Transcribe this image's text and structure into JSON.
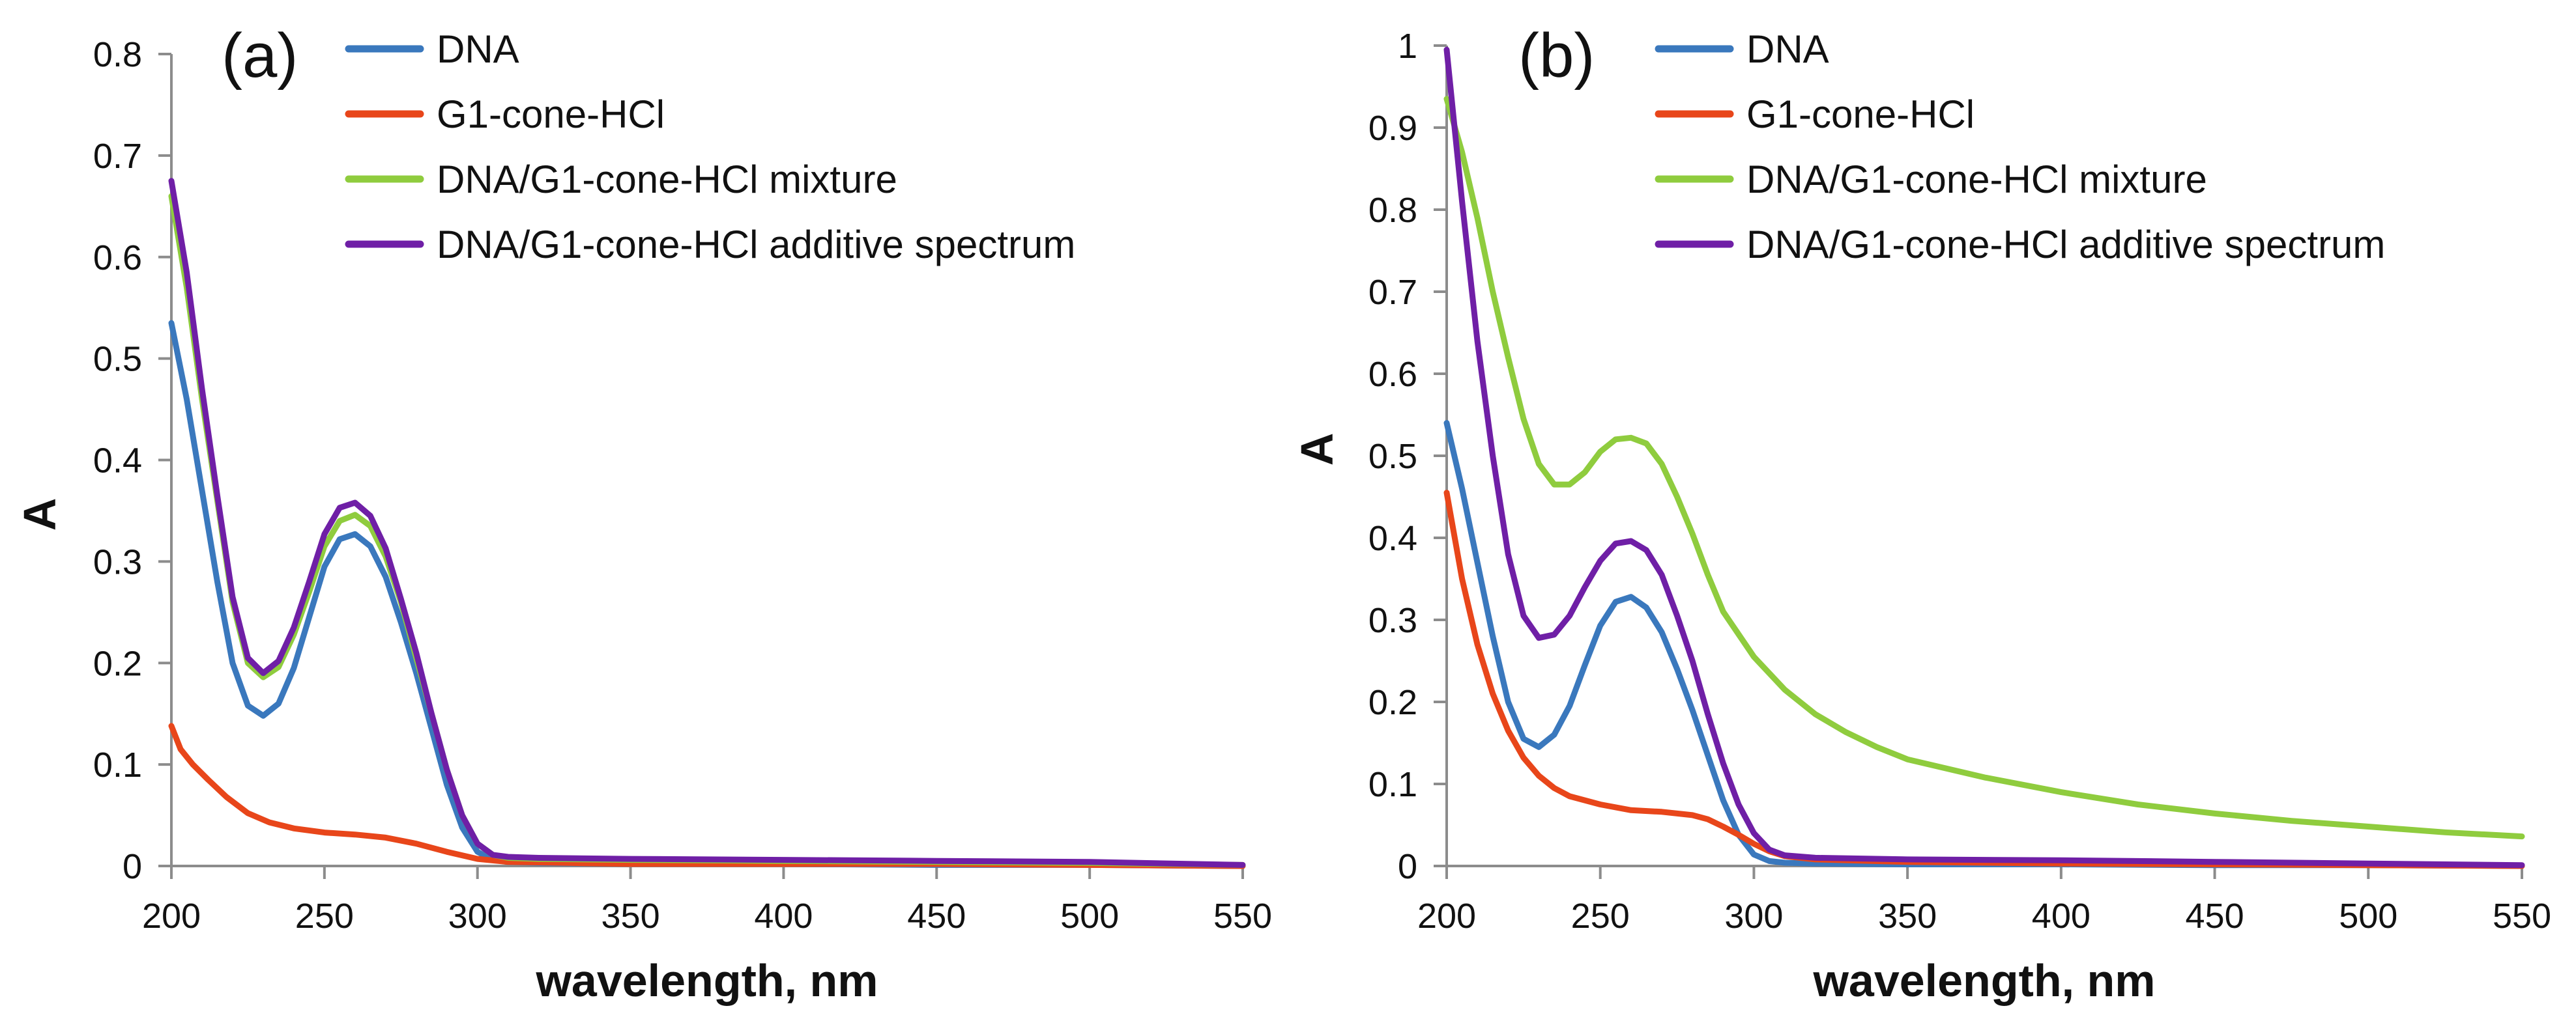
{
  "chart_data": [
    {
      "type": "line",
      "panel_label": "(a)",
      "xlabel": "wavelength, nm",
      "ylabel": "A",
      "xlim": [
        200,
        550
      ],
      "ylim": [
        0,
        0.8
      ],
      "x_ticks": [
        "200",
        "250",
        "300",
        "350",
        "400",
        "450",
        "500",
        "550"
      ],
      "y_ticks": [
        "0",
        "0.1",
        "0.2",
        "0.3",
        "0.4",
        "0.5",
        "0.6",
        "0.7",
        "0.8"
      ],
      "legend_position": "top-right",
      "series": [
        {
          "name": "DNA",
          "color": "#3a78bd",
          "points": [
            [
              200,
              0.535
            ],
            [
              205,
              0.46
            ],
            [
              210,
              0.37
            ],
            [
              215,
              0.28
            ],
            [
              220,
              0.2
            ],
            [
              225,
              0.158
            ],
            [
              230,
              0.148
            ],
            [
              235,
              0.16
            ],
            [
              240,
              0.195
            ],
            [
              245,
              0.245
            ],
            [
              250,
              0.295
            ],
            [
              255,
              0.322
            ],
            [
              260,
              0.327
            ],
            [
              265,
              0.315
            ],
            [
              270,
              0.285
            ],
            [
              275,
              0.24
            ],
            [
              280,
              0.19
            ],
            [
              285,
              0.135
            ],
            [
              290,
              0.08
            ],
            [
              295,
              0.038
            ],
            [
              300,
              0.014
            ],
            [
              305,
              0.006
            ],
            [
              310,
              0.004
            ],
            [
              320,
              0.003
            ],
            [
              350,
              0.002
            ],
            [
              400,
              0.002
            ],
            [
              450,
              0.001
            ],
            [
              500,
              0.001
            ],
            [
              550,
              0.0
            ]
          ]
        },
        {
          "name": "G1-cone-HCl",
          "color": "#e8461a",
          "points": [
            [
              200,
              0.138
            ],
            [
              203,
              0.115
            ],
            [
              207,
              0.1
            ],
            [
              212,
              0.085
            ],
            [
              218,
              0.068
            ],
            [
              225,
              0.052
            ],
            [
              232,
              0.043
            ],
            [
              240,
              0.037
            ],
            [
              250,
              0.033
            ],
            [
              260,
              0.031
            ],
            [
              270,
              0.028
            ],
            [
              280,
              0.022
            ],
            [
              290,
              0.014
            ],
            [
              300,
              0.007
            ],
            [
              310,
              0.004
            ],
            [
              330,
              0.003
            ],
            [
              350,
              0.002
            ],
            [
              400,
              0.002
            ],
            [
              450,
              0.002
            ],
            [
              500,
              0.001
            ],
            [
              550,
              0.0
            ]
          ]
        },
        {
          "name": "DNA/G1-cone-HCl mixture",
          "color": "#8fcc3e",
          "points": [
            [
              200,
              0.66
            ],
            [
              205,
              0.57
            ],
            [
              210,
              0.46
            ],
            [
              215,
              0.36
            ],
            [
              220,
              0.26
            ],
            [
              225,
              0.2
            ],
            [
              230,
              0.186
            ],
            [
              235,
              0.196
            ],
            [
              240,
              0.228
            ],
            [
              245,
              0.27
            ],
            [
              250,
              0.315
            ],
            [
              255,
              0.34
            ],
            [
              260,
              0.346
            ],
            [
              265,
              0.335
            ],
            [
              270,
              0.305
            ],
            [
              275,
              0.26
            ],
            [
              280,
              0.205
            ],
            [
              285,
              0.15
            ],
            [
              290,
              0.095
            ],
            [
              295,
              0.05
            ],
            [
              300,
              0.022
            ],
            [
              305,
              0.011
            ],
            [
              310,
              0.008
            ],
            [
              320,
              0.007
            ],
            [
              350,
              0.006
            ],
            [
              400,
              0.005
            ],
            [
              450,
              0.004
            ],
            [
              500,
              0.003
            ],
            [
              550,
              0.001
            ]
          ]
        },
        {
          "name": "DNA/G1-cone-HCl additive spectrum",
          "color": "#6f1fa6",
          "points": [
            [
              200,
              0.675
            ],
            [
              205,
              0.585
            ],
            [
              210,
              0.47
            ],
            [
              215,
              0.365
            ],
            [
              220,
              0.265
            ],
            [
              225,
              0.205
            ],
            [
              230,
              0.19
            ],
            [
              235,
              0.202
            ],
            [
              240,
              0.235
            ],
            [
              245,
              0.28
            ],
            [
              250,
              0.327
            ],
            [
              255,
              0.353
            ],
            [
              260,
              0.358
            ],
            [
              265,
              0.345
            ],
            [
              270,
              0.313
            ],
            [
              275,
              0.263
            ],
            [
              280,
              0.21
            ],
            [
              285,
              0.15
            ],
            [
              290,
              0.095
            ],
            [
              295,
              0.05
            ],
            [
              300,
              0.022
            ],
            [
              305,
              0.011
            ],
            [
              310,
              0.009
            ],
            [
              320,
              0.008
            ],
            [
              350,
              0.007
            ],
            [
              400,
              0.006
            ],
            [
              450,
              0.005
            ],
            [
              500,
              0.004
            ],
            [
              550,
              0.001
            ]
          ]
        }
      ]
    },
    {
      "type": "line",
      "panel_label": "(b)",
      "xlabel": "wavelength, nm",
      "ylabel": "A",
      "xlim": [
        200,
        550
      ],
      "ylim": [
        0,
        1
      ],
      "x_ticks": [
        "200",
        "250",
        "300",
        "350",
        "400",
        "450",
        "500",
        "550"
      ],
      "y_ticks": [
        "0",
        "0.1",
        "0.2",
        "0.3",
        "0.4",
        "0.5",
        "0.6",
        "0.7",
        "0.8",
        "0.9",
        "1"
      ],
      "legend_position": "top-right",
      "series": [
        {
          "name": "DNA",
          "color": "#3a78bd",
          "points": [
            [
              200,
              0.54
            ],
            [
              205,
              0.46
            ],
            [
              210,
              0.37
            ],
            [
              215,
              0.28
            ],
            [
              220,
              0.2
            ],
            [
              225,
              0.155
            ],
            [
              230,
              0.145
            ],
            [
              235,
              0.16
            ],
            [
              240,
              0.195
            ],
            [
              245,
              0.245
            ],
            [
              250,
              0.293
            ],
            [
              255,
              0.322
            ],
            [
              260,
              0.328
            ],
            [
              265,
              0.315
            ],
            [
              270,
              0.285
            ],
            [
              275,
              0.24
            ],
            [
              280,
              0.19
            ],
            [
              285,
              0.135
            ],
            [
              290,
              0.08
            ],
            [
              295,
              0.038
            ],
            [
              300,
              0.014
            ],
            [
              305,
              0.006
            ],
            [
              310,
              0.004
            ],
            [
              320,
              0.003
            ],
            [
              350,
              0.002
            ],
            [
              400,
              0.002
            ],
            [
              450,
              0.001
            ],
            [
              500,
              0.001
            ],
            [
              550,
              0.0
            ]
          ]
        },
        {
          "name": "G1-cone-HCl",
          "color": "#e8461a",
          "points": [
            [
              200,
              0.455
            ],
            [
              205,
              0.35
            ],
            [
              210,
              0.27
            ],
            [
              215,
              0.21
            ],
            [
              220,
              0.165
            ],
            [
              225,
              0.132
            ],
            [
              230,
              0.11
            ],
            [
              235,
              0.095
            ],
            [
              240,
              0.085
            ],
            [
              250,
              0.075
            ],
            [
              260,
              0.068
            ],
            [
              270,
              0.066
            ],
            [
              280,
              0.062
            ],
            [
              285,
              0.057
            ],
            [
              290,
              0.048
            ],
            [
              295,
              0.038
            ],
            [
              300,
              0.027
            ],
            [
              305,
              0.018
            ],
            [
              310,
              0.012
            ],
            [
              320,
              0.008
            ],
            [
              350,
              0.005
            ],
            [
              400,
              0.003
            ],
            [
              450,
              0.002
            ],
            [
              500,
              0.001
            ],
            [
              550,
              0.0
            ]
          ]
        },
        {
          "name": "DNA/G1-cone-HCl mixture",
          "color": "#8fcc3e",
          "points": [
            [
              200,
              0.935
            ],
            [
              205,
              0.87
            ],
            [
              210,
              0.79
            ],
            [
              215,
              0.7
            ],
            [
              220,
              0.62
            ],
            [
              225,
              0.545
            ],
            [
              230,
              0.49
            ],
            [
              235,
              0.465
            ],
            [
              240,
              0.465
            ],
            [
              245,
              0.48
            ],
            [
              250,
              0.505
            ],
            [
              255,
              0.52
            ],
            [
              260,
              0.522
            ],
            [
              265,
              0.515
            ],
            [
              270,
              0.49
            ],
            [
              275,
              0.45
            ],
            [
              280,
              0.405
            ],
            [
              285,
              0.355
            ],
            [
              290,
              0.31
            ],
            [
              300,
              0.255
            ],
            [
              310,
              0.215
            ],
            [
              320,
              0.185
            ],
            [
              330,
              0.163
            ],
            [
              340,
              0.145
            ],
            [
              350,
              0.13
            ],
            [
              375,
              0.108
            ],
            [
              400,
              0.09
            ],
            [
              425,
              0.075
            ],
            [
              450,
              0.064
            ],
            [
              475,
              0.055
            ],
            [
              500,
              0.048
            ],
            [
              525,
              0.041
            ],
            [
              550,
              0.036
            ]
          ]
        },
        {
          "name": "DNA/G1-cone-HCl additive spectrum",
          "color": "#6f1fa6",
          "points": [
            [
              200,
              0.995
            ],
            [
              205,
              0.81
            ],
            [
              210,
              0.64
            ],
            [
              215,
              0.5
            ],
            [
              220,
              0.38
            ],
            [
              225,
              0.305
            ],
            [
              230,
              0.278
            ],
            [
              235,
              0.282
            ],
            [
              240,
              0.305
            ],
            [
              245,
              0.34
            ],
            [
              250,
              0.372
            ],
            [
              255,
              0.393
            ],
            [
              260,
              0.396
            ],
            [
              265,
              0.385
            ],
            [
              270,
              0.355
            ],
            [
              275,
              0.305
            ],
            [
              280,
              0.25
            ],
            [
              285,
              0.185
            ],
            [
              290,
              0.125
            ],
            [
              295,
              0.075
            ],
            [
              300,
              0.04
            ],
            [
              305,
              0.02
            ],
            [
              310,
              0.013
            ],
            [
              320,
              0.01
            ],
            [
              350,
              0.008
            ],
            [
              400,
              0.007
            ],
            [
              450,
              0.005
            ],
            [
              500,
              0.003
            ],
            [
              550,
              0.001
            ]
          ]
        }
      ]
    }
  ]
}
